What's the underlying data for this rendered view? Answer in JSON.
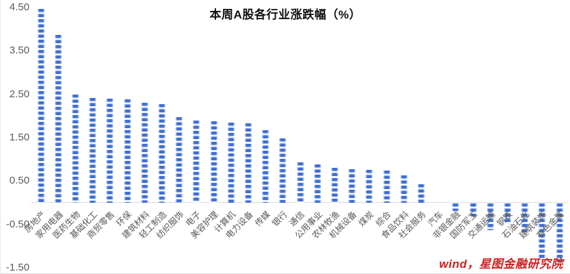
{
  "title": "本周A股各行业涨跌幅（%）",
  "source_note": "wind，星图金融研究院",
  "colors": {
    "bar": "#3f6ed2",
    "bar_gap": "#eef4fd",
    "bar_edge": "rgba(255,255,255,0.55)",
    "axis_line": "#d9d9d9",
    "tick_text": "#595959",
    "title_text": "#111111",
    "source_text": "#cc2222"
  },
  "chart_data": {
    "type": "bar",
    "title": "本周A股各行业涨跌幅（%）",
    "categories": [
      "房地产",
      "家用电器",
      "医药生物",
      "基础化工",
      "商贸零售",
      "环保",
      "建筑材料",
      "轻工制造",
      "纺织服饰",
      "电子",
      "美容护理",
      "计算机",
      "电力设备",
      "传媒",
      "银行",
      "通信",
      "公用事业",
      "农林牧渔",
      "机械设备",
      "煤炭",
      "综合",
      "食品饮料",
      "社会服务",
      "汽车",
      "非银金融",
      "国防军工",
      "交通运输",
      "钢铁",
      "石油石化",
      "建筑装饰",
      "有色金属"
    ],
    "values": [
      4.47,
      3.87,
      2.49,
      2.42,
      2.4,
      2.38,
      2.31,
      2.27,
      1.98,
      1.9,
      1.88,
      1.85,
      1.83,
      1.68,
      1.48,
      0.93,
      0.88,
      0.8,
      0.78,
      0.76,
      0.74,
      0.63,
      0.43,
      0.0,
      -0.17,
      -0.3,
      -0.61,
      -0.46,
      -0.66,
      -1.27,
      -1.34
    ],
    "yticks": [
      "4.50",
      "3.50",
      "2.50",
      "1.50",
      "0.50",
      "-0.50",
      "-1.50"
    ],
    "ylim": [
      -1.5,
      4.5
    ],
    "xlabel": "",
    "ylabel": "",
    "grid": false,
    "legend": "none",
    "bar_style": "horizontal-striped-blue"
  }
}
